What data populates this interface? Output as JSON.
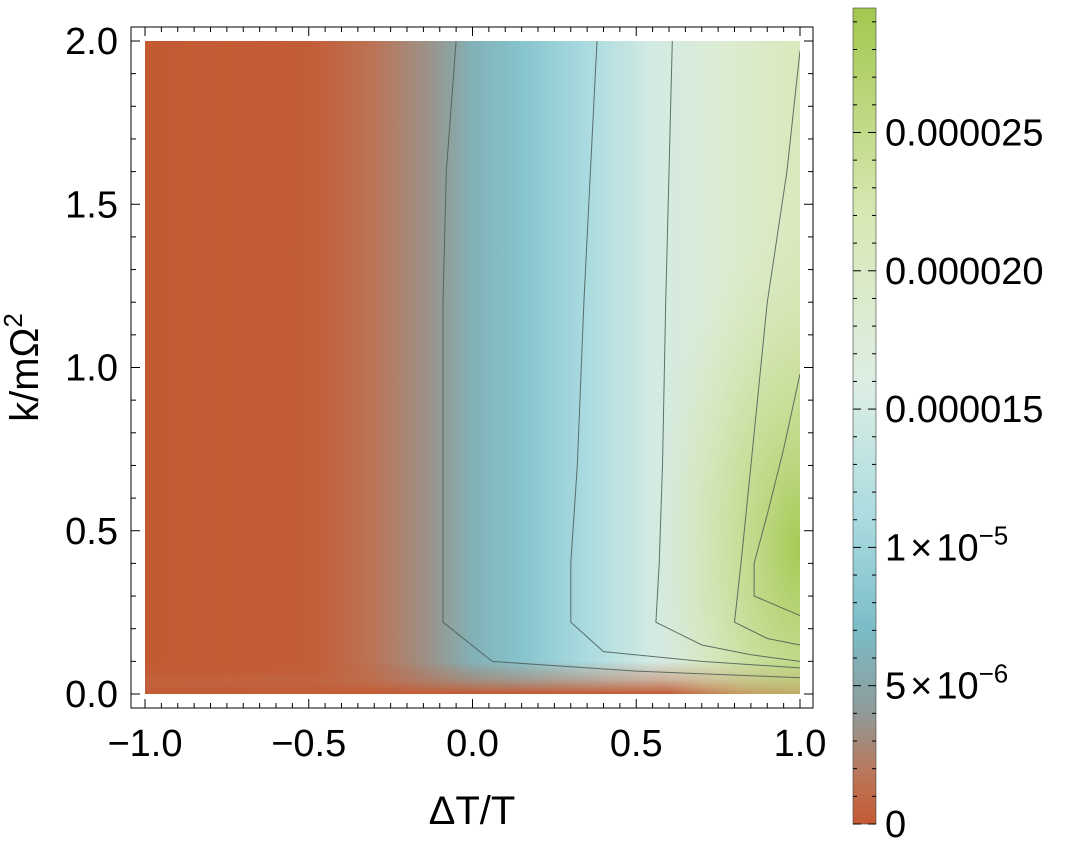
{
  "chart_data": {
    "type": "heatmap",
    "title": "",
    "xlabel": "ΔT/T",
    "ylabel": "k/mΩ",
    "ylabel_sup": "2",
    "xlim": [
      -1.0,
      1.0
    ],
    "ylim": [
      0.0,
      2.0
    ],
    "x_ticks": [
      {
        "value": -1.0,
        "label": "−1.0"
      },
      {
        "value": -0.5,
        "label": "−0.5"
      },
      {
        "value": 0.0,
        "label": "0.0"
      },
      {
        "value": 0.5,
        "label": "0.5"
      },
      {
        "value": 1.0,
        "label": "1.0"
      }
    ],
    "y_ticks": [
      {
        "value": 0.0,
        "label": "0.0"
      },
      {
        "value": 0.5,
        "label": "0.5"
      },
      {
        "value": 1.0,
        "label": "1.0"
      },
      {
        "value": 1.5,
        "label": "1.5"
      },
      {
        "value": 2.0,
        "label": "2.0"
      }
    ],
    "colorbar": {
      "range": [
        0,
        2.95e-05
      ],
      "ticks": [
        {
          "value": 0,
          "label": "0"
        },
        {
          "value": 5e-06,
          "mantissa": "5",
          "times": "×",
          "base": "10",
          "exponent": "−6"
        },
        {
          "value": 1e-05,
          "mantissa": "1",
          "times": "×",
          "base": "10",
          "exponent": "−5"
        },
        {
          "value": 1.5e-05,
          "label": "0.000015"
        },
        {
          "value": 2e-05,
          "label": "0.000020"
        },
        {
          "value": 2.5e-05,
          "label": "0.000025"
        }
      ],
      "stops": [
        {
          "value": 0.0,
          "color": "#c45a32"
        },
        {
          "value": 2e-06,
          "color": "#b97a60"
        },
        {
          "value": 4e-06,
          "color": "#8f9a98"
        },
        {
          "value": 7e-06,
          "color": "#7bbcc7"
        },
        {
          "value": 1.1e-05,
          "color": "#aadbe0"
        },
        {
          "value": 1.6e-05,
          "color": "#ddeee4"
        },
        {
          "value": 2.2e-05,
          "color": "#d8e8b4"
        },
        {
          "value": 2.95e-05,
          "color": "#a2c84e"
        }
      ]
    },
    "contours": [
      {
        "level": 5e-06,
        "points": [
          [
            -0.05,
            2.0
          ],
          [
            -0.08,
            1.6
          ],
          [
            -0.09,
            1.2
          ],
          [
            -0.09,
            0.7
          ],
          [
            -0.09,
            0.4
          ],
          [
            -0.09,
            0.22
          ],
          [
            0.06,
            0.1
          ],
          [
            0.5,
            0.07
          ],
          [
            1.0,
            0.05
          ]
        ]
      },
      {
        "level": 1e-05,
        "points": [
          [
            0.38,
            2.0
          ],
          [
            0.36,
            1.6
          ],
          [
            0.34,
            1.2
          ],
          [
            0.32,
            0.7
          ],
          [
            0.3,
            0.4
          ],
          [
            0.3,
            0.22
          ],
          [
            0.4,
            0.13
          ],
          [
            0.7,
            0.1
          ],
          [
            1.0,
            0.08
          ]
        ]
      },
      {
        "level": 1.5e-05,
        "points": [
          [
            0.61,
            2.0
          ],
          [
            0.6,
            1.6
          ],
          [
            0.59,
            1.2
          ],
          [
            0.58,
            0.7
          ],
          [
            0.57,
            0.4
          ],
          [
            0.56,
            0.22
          ],
          [
            0.7,
            0.15
          ],
          [
            0.85,
            0.12
          ],
          [
            1.0,
            0.1
          ]
        ]
      },
      {
        "level": 2e-05,
        "points": [
          [
            1.0,
            1.97
          ],
          [
            0.96,
            1.6
          ],
          [
            0.9,
            1.2
          ],
          [
            0.85,
            0.7
          ],
          [
            0.82,
            0.4
          ],
          [
            0.8,
            0.22
          ],
          [
            0.9,
            0.17
          ],
          [
            1.0,
            0.15
          ]
        ]
      },
      {
        "level": 2.5e-05,
        "points": [
          [
            1.0,
            0.98
          ],
          [
            0.95,
            0.75
          ],
          [
            0.9,
            0.55
          ],
          [
            0.86,
            0.4
          ],
          [
            0.86,
            0.3
          ],
          [
            1.0,
            0.24
          ]
        ]
      }
    ]
  }
}
